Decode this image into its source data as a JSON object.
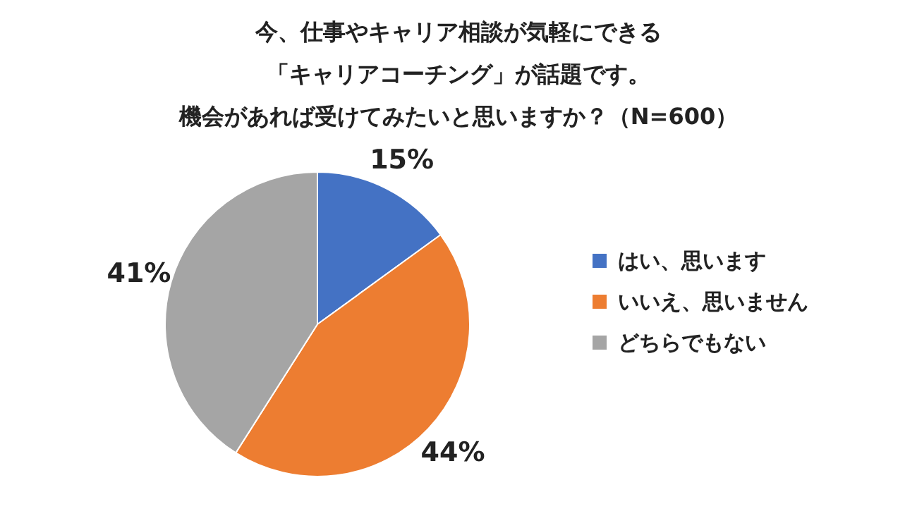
{
  "chart_data": {
    "type": "pie",
    "title": "今、仕事やキャリア相談が気軽にできる「キャリアコーチング」が話題です。",
    "subtitle": "機会があれば受けてみたいと思いますか？（N=600）",
    "categories": [
      "はい、思います",
      "いいえ、思いません",
      "どちらでもない"
    ],
    "values": [
      15,
      44,
      41
    ],
    "colors": [
      "#4472c4",
      "#ed7d31",
      "#a5a5a5"
    ],
    "value_labels": [
      "15%",
      "44%",
      "41%"
    ],
    "legend": "right"
  }
}
